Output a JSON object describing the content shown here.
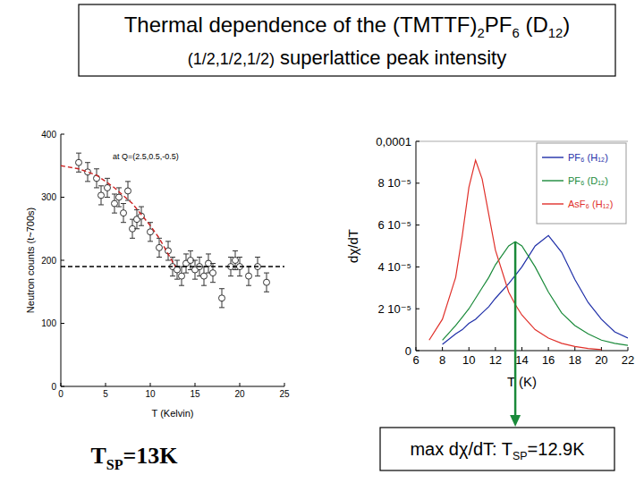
{
  "header": {
    "title_lines": [
      [
        {
          "text": "Thermal dependence of the (TMTTF)"
        },
        {
          "text": "2",
          "sub": true
        },
        {
          "text": "PF"
        },
        {
          "text": "6",
          "sub": true
        },
        {
          "text": " (D"
        },
        {
          "text": "12",
          "sub": true
        },
        {
          "text": ")"
        }
      ],
      [
        {
          "text": "(1/2,1/2,1/2)",
          "small": true
        },
        {
          "text": " superlattice peak intensity"
        }
      ]
    ]
  },
  "captions": [
    [
      {
        "text": "T"
      },
      {
        "text": "SP",
        "sub": true
      },
      {
        "text": "=13K"
      }
    ],
    [
      {
        "text": "max dχ/dT: T"
      },
      {
        "text": "SP",
        "sub": true
      },
      {
        "text": "=12.9K"
      }
    ]
  ],
  "chart_data": [
    {
      "type": "scatter",
      "x_label": "T (Kelvin)",
      "y_label": "Neutron counts (t~700s)",
      "annotations": [
        "at Q=(2.5,0.5,-0.5)"
      ],
      "xlim": [
        0,
        25
      ],
      "ylim": [
        0,
        400
      ],
      "xticks": [
        0,
        5,
        10,
        15,
        20,
        25
      ],
      "yticks": [
        0,
        100,
        200,
        300,
        400
      ],
      "grid": false,
      "series": [
        {
          "type": "scatter",
          "marker": "circle",
          "color": "#333333",
          "x": [
            2,
            3,
            4,
            4.5,
            5.2,
            6,
            6.5,
            7,
            7.5,
            8,
            8.5,
            9,
            10,
            11,
            12,
            12.5,
            13,
            13.5,
            14,
            14.5,
            15,
            15.5,
            16,
            16.5,
            17,
            18,
            19,
            19.5,
            20,
            21,
            22,
            23
          ],
          "values": [
            355,
            340,
            330,
            303,
            315,
            290,
            300,
            275,
            310,
            250,
            265,
            270,
            245,
            220,
            215,
            190,
            185,
            175,
            195,
            200,
            185,
            190,
            175,
            195,
            180,
            140,
            190,
            200,
            190,
            175,
            190,
            165
          ],
          "errors": [
            15,
            15,
            15,
            15,
            15,
            15,
            15,
            15,
            15,
            15,
            15,
            15,
            15,
            15,
            15,
            15,
            15,
            15,
            15,
            15,
            15,
            15,
            15,
            15,
            15,
            15,
            15,
            15,
            15,
            15,
            15,
            15
          ]
        },
        {
          "type": "line",
          "line_style": "dashed",
          "color": "#cc2222",
          "x": [
            0,
            2,
            4,
            6,
            8,
            10,
            11,
            12,
            12.8
          ],
          "values": [
            350,
            345,
            335,
            315,
            290,
            255,
            235,
            210,
            190
          ]
        },
        {
          "type": "line",
          "line_style": "dashed",
          "color": "#000000",
          "x": [
            0,
            25
          ],
          "values": [
            190,
            190
          ]
        }
      ]
    },
    {
      "type": "line",
      "x_label": "T (K)",
      "y_label": "dχ/dT",
      "xlim": [
        6,
        22
      ],
      "ylim": [
        0,
        0.0001
      ],
      "xticks": [
        6,
        8,
        10,
        12,
        14,
        16,
        18,
        20,
        22
      ],
      "yticks": [
        0,
        {
          "value": 2e-05,
          "label": "2 10⁻⁵"
        },
        {
          "value": 4e-05,
          "label": "4 10⁻⁵"
        },
        {
          "value": 6e-05,
          "label": "6 10⁻⁵"
        },
        {
          "value": 8e-05,
          "label": "8 10⁻⁵"
        },
        {
          "value": 0.0001,
          "label": "0,0001"
        }
      ],
      "grid": false,
      "legend": "upper right",
      "x": [
        7,
        8,
        9,
        9.5,
        10,
        10.5,
        11,
        11.5,
        12,
        13,
        13.5,
        14,
        15,
        16,
        17,
        18,
        19,
        20,
        21,
        22
      ],
      "series": [
        {
          "name": "PF₆ (H₁₂)",
          "color": "#1f2fa8",
          "values": [
            null,
            3e-06,
            8e-06,
            1e-05,
            1.3e-05,
            1.5e-05,
            1.8e-05,
            2.1e-05,
            2.5e-05,
            3.2e-05,
            3.6e-05,
            4e-05,
            5e-05,
            5.5e-05,
            4.7e-05,
            3.4e-05,
            2.3e-05,
            1.5e-05,
            9e-06,
            6e-06
          ]
        },
        {
          "name": "PF₆ (D₁₂)",
          "color": "#1a8a3a",
          "values": [
            null,
            5e-06,
            1.2e-05,
            1.6e-05,
            2e-05,
            2.5e-05,
            3e-05,
            3.5e-05,
            4.1e-05,
            5e-05,
            5.2e-05,
            5e-05,
            4e-05,
            2.8e-05,
            1.8e-05,
            1.2e-05,
            8e-06,
            5e-06,
            3.5e-06,
            2.5e-06
          ]
        },
        {
          "name": "AsF₆ (H₁₂)",
          "color": "#e0302a",
          "values": [
            5e-06,
            1.5e-05,
            3.5e-05,
            5.5e-05,
            7.8e-05,
            9.1e-05,
            8.2e-05,
            6.5e-05,
            4.8e-05,
            2.8e-05,
            2.2e-05,
            1.7e-05,
            1e-05,
            6e-06,
            3.5e-06,
            2e-06,
            1e-06,
            5e-07,
            null,
            null
          ]
        }
      ]
    }
  ]
}
